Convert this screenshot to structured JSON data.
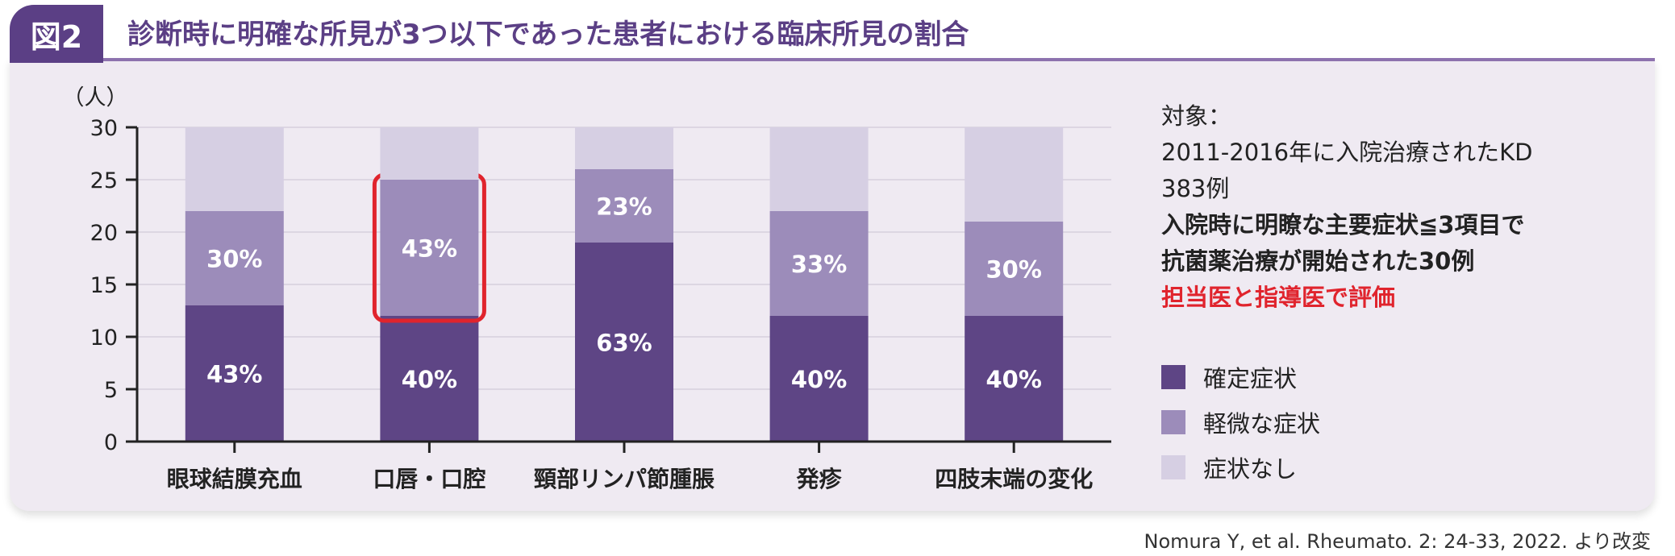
{
  "figure": {
    "badge": "図2",
    "title": "診断時に明確な所見が3つ以下であった患者における臨床所見の割合"
  },
  "chart_data": {
    "type": "bar",
    "stacked": true,
    "y_unit_label": "（人）",
    "ylim": [
      0,
      30
    ],
    "yticks": [
      "0",
      "5",
      "10",
      "15",
      "20",
      "25",
      "30"
    ],
    "grid": true,
    "categories": [
      "眼球結膜充血",
      "口唇・口腔",
      "頸部リンパ節腫脹",
      "発疹",
      "四肢末端の変化"
    ],
    "series": [
      {
        "name": "確定症状",
        "values": [
          13,
          12,
          19,
          12,
          12
        ],
        "labels": [
          "43%",
          "40%",
          "63%",
          "40%",
          "40%"
        ],
        "color": "#5e4585"
      },
      {
        "name": "軽微な症状",
        "values": [
          9,
          13,
          7,
          10,
          9
        ],
        "labels": [
          "30%",
          "43%",
          "23%",
          "33%",
          "30%"
        ],
        "color": "#9c8cba"
      },
      {
        "name": "症状なし",
        "values": [
          8,
          5,
          4,
          8,
          9
        ],
        "labels": [
          "",
          "",
          "",
          "",
          ""
        ],
        "color": "#d6cfe3"
      }
    ],
    "highlight": {
      "category_index": 1,
      "series_index": 1,
      "color": "#e0242d"
    },
    "legend_position": "right"
  },
  "info": {
    "line1": "対象：",
    "line2": "2011-2016年に入院治療されたKD",
    "line3": "383例",
    "line4": "入院時に明瞭な主要症状≦3項目で",
    "line5": "抗菌薬治療が開始された30例",
    "line6": "担当医と指導医で評価"
  },
  "source": "Nomura Y, et al. Rheumato. 2: 24-33, 2022. より改変"
}
